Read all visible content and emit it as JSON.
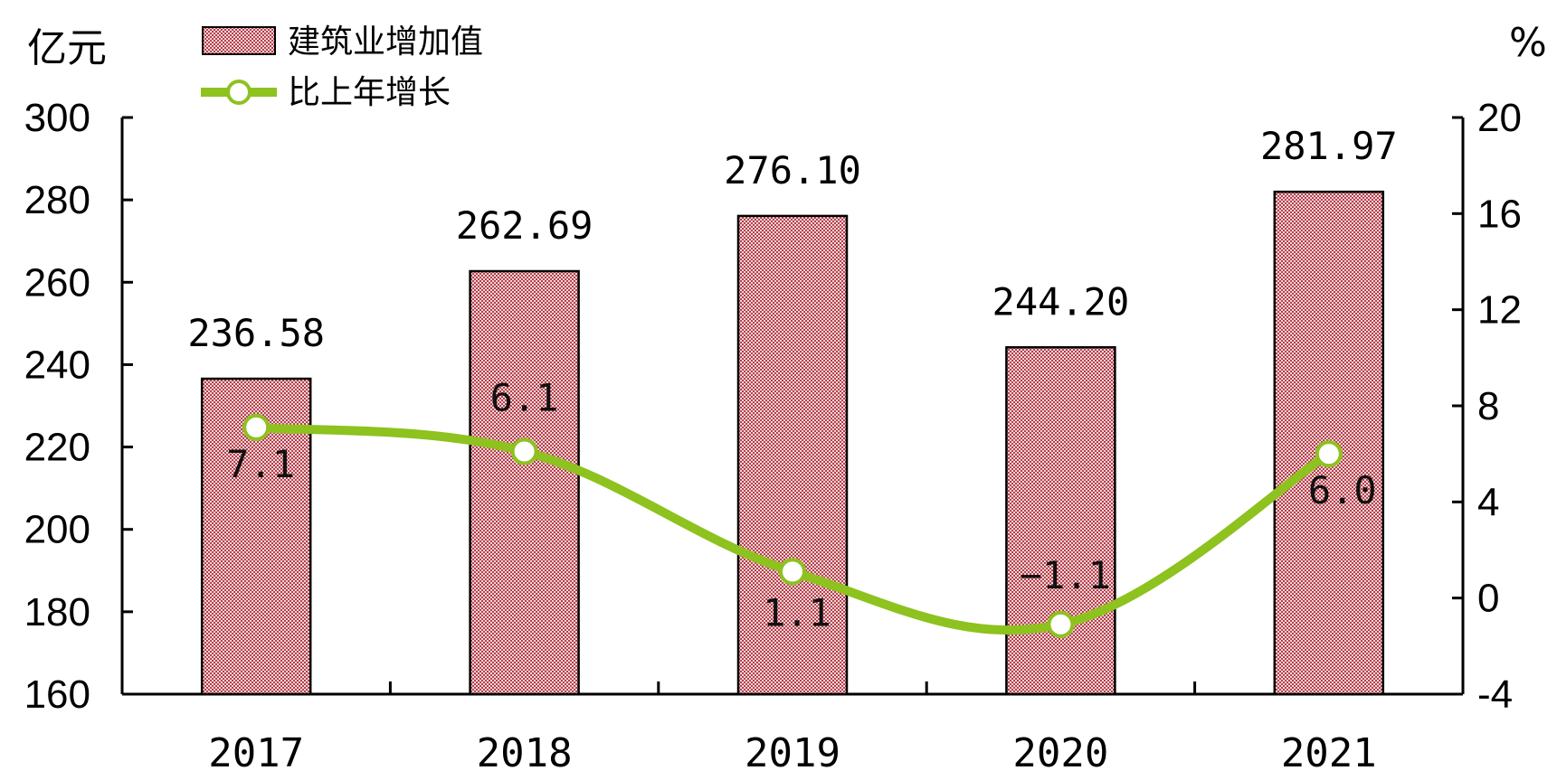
{
  "chart_data": {
    "type": "bar",
    "categories": [
      "2017",
      "2018",
      "2019",
      "2020",
      "2021"
    ],
    "series": [
      {
        "name": "建筑业增加值",
        "type": "bar",
        "axis": "left",
        "values": [
          236.58,
          262.69,
          276.1,
          244.2,
          281.97
        ],
        "labels": [
          "236.58",
          "262.69",
          "276.10",
          "244.20",
          "281.97"
        ]
      },
      {
        "name": "比上年增长",
        "type": "line",
        "axis": "right",
        "values": [
          7.1,
          6.1,
          1.1,
          -1.1,
          6.0
        ],
        "labels": [
          "7.1",
          "6.1",
          "1.1",
          "−1.1",
          "6.0"
        ]
      }
    ],
    "left_axis": {
      "unit": "亿元",
      "ylim": [
        160,
        300
      ],
      "ticks": [
        "300",
        "280",
        "260",
        "240",
        "220",
        "200",
        "180",
        "160"
      ]
    },
    "right_axis": {
      "unit": "%",
      "ylim": [
        -4,
        20
      ],
      "ticks": [
        "20",
        "16",
        "12",
        "8",
        "4",
        "0",
        "-4"
      ]
    },
    "legend_position": "top-left",
    "grid": false,
    "colors": {
      "bar_fill": "#c0606a",
      "bar_pattern_light": "#f3d6d8",
      "bar_stroke": "#000000",
      "line": "#8dc21f",
      "marker_fill": "#ffffff"
    }
  }
}
